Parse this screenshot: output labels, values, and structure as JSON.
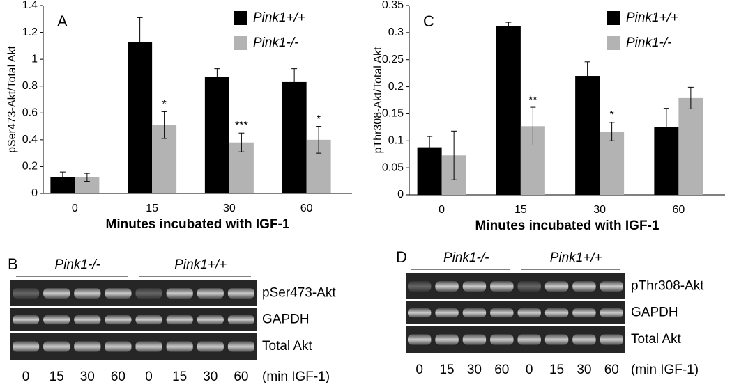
{
  "chart_data": [
    {
      "type": "bar",
      "panel_label": "A",
      "y_label": "pSer473-Akt/Total Akt",
      "x_label": "Minutes incubated with IGF-1",
      "categories": [
        "0",
        "15",
        "30",
        "60"
      ],
      "series": [
        {
          "name": "Pink1+/+",
          "color": "#000000",
          "values": [
            0.12,
            1.13,
            0.87,
            0.83
          ],
          "errors": [
            0.04,
            0.18,
            0.06,
            0.1
          ]
        },
        {
          "name": "Pink1-/-",
          "color": "#b3b3b3",
          "values": [
            0.12,
            0.51,
            0.38,
            0.4
          ],
          "errors": [
            0.03,
            0.1,
            0.07,
            0.1
          ]
        }
      ],
      "annotations": [
        null,
        "*",
        "***",
        "*"
      ],
      "ylim": [
        0,
        1.4
      ],
      "yticks": [
        0,
        0.2,
        0.4,
        0.6,
        0.8,
        1,
        1.2,
        1.4
      ],
      "grid": false,
      "legend": "top-right"
    },
    {
      "type": "bar",
      "panel_label": "C",
      "y_label": "pThr308-Akt/Total Akt",
      "x_label": "Minutes incubated with IGF-1",
      "categories": [
        "0",
        "15",
        "30",
        "60"
      ],
      "series": [
        {
          "name": "Pink1+/+",
          "color": "#000000",
          "values": [
            0.088,
            0.312,
            0.22,
            0.125
          ],
          "errors": [
            0.02,
            0.007,
            0.026,
            0.035
          ]
        },
        {
          "name": "Pink1-/-",
          "color": "#b3b3b3",
          "values": [
            0.073,
            0.127,
            0.117,
            0.179
          ],
          "errors": [
            0.045,
            0.035,
            0.017,
            0.02
          ]
        }
      ],
      "annotations": [
        null,
        "**",
        "*",
        null
      ],
      "ylim": [
        0,
        0.35
      ],
      "yticks": [
        0,
        0.05,
        0.1,
        0.15,
        0.2,
        0.25,
        0.3,
        0.35
      ],
      "grid": false,
      "legend": "top-right"
    }
  ],
  "blots": [
    {
      "panel_label": "B",
      "groups": [
        "Pink1-/-",
        "Pink1+/+"
      ],
      "rows": [
        "pSer473-Akt",
        "GAPDH",
        "Total Akt"
      ],
      "lanes": [
        "0",
        "15",
        "30",
        "60",
        "0",
        "15",
        "30",
        "60"
      ],
      "lane_note": "(min IGF-1)"
    },
    {
      "panel_label": "D",
      "groups": [
        "Pink1-/-",
        "Pink1+/+"
      ],
      "rows": [
        "pThr308-Akt",
        "GAPDH",
        "Total Akt"
      ],
      "lanes": [
        "0",
        "15",
        "30",
        "60",
        "0",
        "15",
        "30",
        "60"
      ],
      "lane_note": "(min IGF-1)"
    }
  ]
}
